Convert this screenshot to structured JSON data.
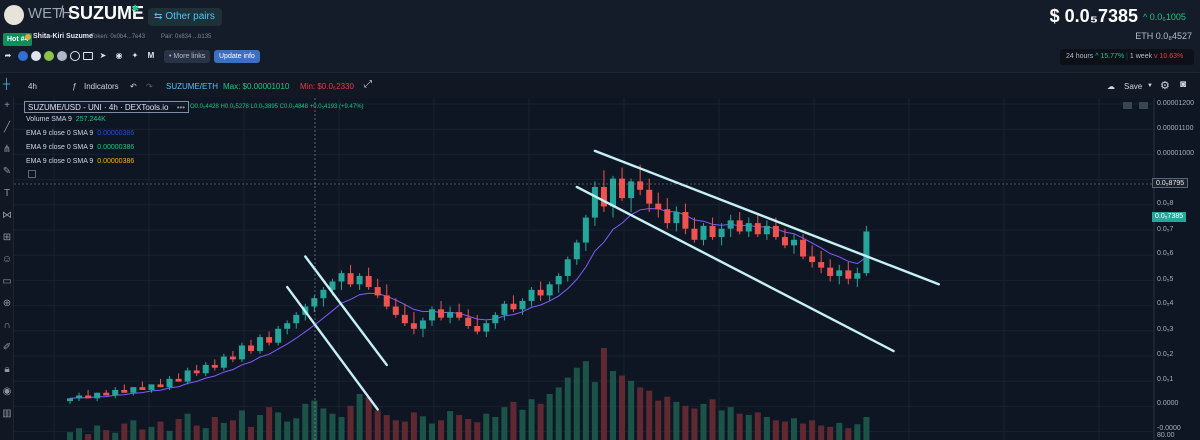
{
  "header": {
    "base_token": "WETH",
    "slash": "/",
    "main_token": "SUZUME",
    "verified_glyph": "✱",
    "other_pairs": "Other pairs",
    "hot_badge": "Hot #4",
    "token_fullname": "Shita-Kiri Suzume",
    "token_address": "Token: 0x0b4...7e43",
    "pair_address": "Pair: 0x834 ...b135",
    "more_links": "• More links",
    "update_info": "Update info",
    "price": "$ 0.0₅7385",
    "price_change": "^ 0.0₆1005",
    "eth_price": "ETH  0.0₈4527",
    "stats": {
      "h24_label": "24 hours",
      "h24_value": "^ 15.77%",
      "w1_label": "1 week",
      "w1_value": "v 10.63%"
    },
    "social_icons": [
      "share-icon",
      "uniswap-icon",
      "etherscan-icon",
      "coingecko-icon",
      "cmc-icon",
      "website-icon",
      "telegram-icon",
      "discord-icon",
      "twitter-icon",
      "medium-icon"
    ]
  },
  "toolbar": {
    "interval": "4h",
    "indicators": "Indicators",
    "pair": "SUZUME/ETH",
    "max": "Max: $0.00001010",
    "min": "Min: $0.0₆2330",
    "save": "Save"
  },
  "legend": {
    "title": "SUZUME/USD - UNI · 4h · DEXTools.io",
    "dots": "•••",
    "ohlc": "O0.0₅4428 H0.0₅5278 L0.0₅3895 C0.0₅4848 +0.0₅4193 (+9.47%)",
    "volume": "Volume SMA 9",
    "volume_value": "257.244K",
    "ema_rows": [
      {
        "label": "EMA 9 close 0 SMA 9",
        "value": "0.00000386",
        "color": "#1f4fd6"
      },
      {
        "label": "EMA 9 close 0 SMA 9",
        "value": "0.00000386",
        "color": "#16c784"
      },
      {
        "label": "EMA 9 close 0 SMA 9",
        "value": "0.00000386",
        "color": "#f7b500"
      }
    ]
  },
  "axis": {
    "labels": [
      "0.00001200",
      "0.00001100",
      "0.00001000",
      "0.0₅8795",
      "0.0₅8",
      "0.0₅7385",
      "0.0₅7",
      "0.0₅6",
      "0.0₅5",
      "0.0₅4",
      "0.0₅3",
      "0.0₅2",
      "0.0₅1",
      "0.0000",
      "-0.0000"
    ],
    "current_tag": "0.0₅7385",
    "current_color": "#26a69a",
    "crosshair_tag": "0.0₅8795",
    "bottom_value": "80.00"
  },
  "chart_data": {
    "type": "candlestick",
    "interval": "4h",
    "ylim": [
      -2e-07,
      1.21e-05
    ],
    "candles": [
      [
        1.2e-06,
        1.3e-06,
        1.1e-06,
        1.3e-06
      ],
      [
        1.3e-06,
        1.5e-06,
        1.2e-06,
        1.4e-06
      ],
      [
        1.4e-06,
        1.6e-06,
        1.3e-06,
        1.3e-06
      ],
      [
        1.3e-06,
        1.5e-06,
        1.2e-06,
        1.5e-06
      ],
      [
        1.5e-06,
        1.6e-06,
        1.4e-06,
        1.4e-06
      ],
      [
        1.4e-06,
        1.7e-06,
        1.3e-06,
        1.6e-06
      ],
      [
        1.6e-06,
        1.8e-06,
        1.5e-06,
        1.5e-06
      ],
      [
        1.5e-06,
        1.7e-06,
        1.4e-06,
        1.7e-06
      ],
      [
        1.7e-06,
        1.9e-06,
        1.6e-06,
        1.6e-06
      ],
      [
        1.6e-06,
        1.8e-06,
        1.5e-06,
        1.8e-06
      ],
      [
        1.8e-06,
        2e-06,
        1.7e-06,
        1.7e-06
      ],
      [
        1.7e-06,
        2.1e-06,
        1.6e-06,
        2e-06
      ],
      [
        2e-06,
        2.2e-06,
        1.9e-06,
        1.9e-06
      ],
      [
        1.9e-06,
        2.4e-06,
        1.8e-06,
        2.3e-06
      ],
      [
        2.3e-06,
        2.5e-06,
        2.1e-06,
        2.2e-06
      ],
      [
        2.2e-06,
        2.6e-06,
        2.1e-06,
        2.5e-06
      ],
      [
        2.5e-06,
        2.7e-06,
        2.3e-06,
        2.4e-06
      ],
      [
        2.4e-06,
        2.9e-06,
        2.3e-06,
        2.8e-06
      ],
      [
        2.8e-06,
        3e-06,
        2.6e-06,
        2.7e-06
      ],
      [
        2.7e-06,
        3.3e-06,
        2.6e-06,
        3.2e-06
      ],
      [
        3.2e-06,
        3.4e-06,
        2.9e-06,
        3e-06
      ],
      [
        3e-06,
        3.6e-06,
        2.9e-06,
        3.5e-06
      ],
      [
        3.5e-06,
        3.7e-06,
        3.2e-06,
        3.3e-06
      ],
      [
        3.3e-06,
        3.9e-06,
        3.2e-06,
        3.8e-06
      ],
      [
        3.8e-06,
        4.1e-06,
        3.6e-06,
        4e-06
      ],
      [
        4e-06,
        4.4e-06,
        3.8e-06,
        4.3e-06
      ],
      [
        4.3e-06,
        4.7e-06,
        4.1e-06,
        4.6e-06
      ],
      [
        4.6e-06,
        5e-06,
        4.4e-06,
        4.9e-06
      ],
      [
        4.9e-06,
        5.3e-06,
        4.6e-06,
        5.2e-06
      ],
      [
        5.2e-06,
        5.6e-06,
        5e-06,
        5.5e-06
      ],
      [
        5.5e-06,
        5.9e-06,
        5.2e-06,
        5.8e-06
      ],
      [
        5.8e-06,
        6.1e-06,
        5.3e-06,
        5.4e-06
      ],
      [
        5.4e-06,
        5.8e-06,
        5.2e-06,
        5.7e-06
      ],
      [
        5.7e-06,
        6e-06,
        5.2e-06,
        5.3e-06
      ],
      [
        5.3e-06,
        5.6e-06,
        4.9e-06,
        5e-06
      ],
      [
        5e-06,
        5.4e-06,
        4.5e-06,
        4.6e-06
      ],
      [
        4.6e-06,
        4.9e-06,
        4.2e-06,
        4.3e-06
      ],
      [
        4.3e-06,
        4.7e-06,
        3.9e-06,
        4e-06
      ],
      [
        4e-06,
        4.4e-06,
        3.6e-06,
        3.8e-06
      ],
      [
        3.8e-06,
        4.2e-06,
        3.5e-06,
        4.1e-06
      ],
      [
        4.1e-06,
        4.6e-06,
        3.9e-06,
        4.5e-06
      ],
      [
        4.5e-06,
        4.8e-06,
        4.1e-06,
        4.2e-06
      ],
      [
        4.2e-06,
        4.6e-06,
        4e-06,
        4.4e-06
      ],
      [
        4.4e-06,
        4.7e-06,
        4.1e-06,
        4.2e-06
      ],
      [
        4.2e-06,
        4.5e-06,
        3.8e-06,
        3.9e-06
      ],
      [
        3.9e-06,
        4.3e-06,
        3.6e-06,
        3.7e-06
      ],
      [
        3.7e-06,
        4.1e-06,
        3.5e-06,
        4e-06
      ],
      [
        4e-06,
        4.4e-06,
        3.8e-06,
        4.3e-06
      ],
      [
        4.3e-06,
        4.8e-06,
        4.1e-06,
        4.7e-06
      ],
      [
        4.7e-06,
        5e-06,
        4.4e-06,
        4.5e-06
      ],
      [
        4.5e-06,
        4.9e-06,
        4.3e-06,
        4.8e-06
      ],
      [
        4.8e-06,
        5.3e-06,
        4.6e-06,
        5.2e-06
      ],
      [
        5.2e-06,
        5.5e-06,
        4.8e-06,
        5e-06
      ],
      [
        5e-06,
        5.5e-06,
        4.8e-06,
        5.4e-06
      ],
      [
        5.4e-06,
        5.8e-06,
        5.1e-06,
        5.7e-06
      ],
      [
        5.7e-06,
        6.4e-06,
        5.5e-06,
        6.3e-06
      ],
      [
        6.3e-06,
        7e-06,
        6.1e-06,
        6.9e-06
      ],
      [
        6.9e-06,
        7.9e-06,
        6.6e-06,
        7.8e-06
      ],
      [
        7.8e-06,
        9.1e-06,
        7.5e-06,
        8.9e-06
      ],
      [
        8.9e-06,
        9.5e-06,
        8e-06,
        8.2e-06
      ],
      [
        8.2e-06,
        9.3e-06,
        7.8e-06,
        9.2e-06
      ],
      [
        9.2e-06,
        9.6e-06,
        8.4e-06,
        8.5e-06
      ],
      [
        8.5e-06,
        9.2e-06,
        8e-06,
        9.1e-06
      ],
      [
        9.1e-06,
        9.7e-06,
        8.6e-06,
        8.8e-06
      ],
      [
        8.8e-06,
        9.2e-06,
        8e-06,
        8.3e-06
      ],
      [
        8.3e-06,
        8.7e-06,
        7.8e-06,
        8.1e-06
      ],
      [
        8.1e-06,
        8.5e-06,
        7.4e-06,
        7.6e-06
      ],
      [
        7.6e-06,
        8.2e-06,
        7.3e-06,
        8e-06
      ],
      [
        8e-06,
        8.3e-06,
        7.2e-06,
        7.4e-06
      ],
      [
        7.4e-06,
        7.8e-06,
        6.9e-06,
        7e-06
      ],
      [
        7e-06,
        7.6e-06,
        6.8e-06,
        7.5e-06
      ],
      [
        7.5e-06,
        7.8e-06,
        7e-06,
        7.1e-06
      ],
      [
        7.1e-06,
        7.6e-06,
        6.8e-06,
        7.4e-06
      ],
      [
        7.4e-06,
        7.9e-06,
        7.1e-06,
        7.7e-06
      ],
      [
        7.7e-06,
        8e-06,
        7.2e-06,
        7.3e-06
      ],
      [
        7.3e-06,
        7.8e-06,
        7.1e-06,
        7.6e-06
      ],
      [
        7.6e-06,
        7.9e-06,
        7.1e-06,
        7.2e-06
      ],
      [
        7.2e-06,
        7.7e-06,
        7e-06,
        7.5e-06
      ],
      [
        7.5e-06,
        7.8e-06,
        7e-06,
        7.1e-06
      ],
      [
        7.1e-06,
        7.4e-06,
        6.7e-06,
        6.8e-06
      ],
      [
        6.8e-06,
        7.2e-06,
        6.5e-06,
        7e-06
      ],
      [
        7e-06,
        7.2e-06,
        6.3e-06,
        6.4e-06
      ],
      [
        6.4e-06,
        6.8e-06,
        6e-06,
        6.2e-06
      ],
      [
        6.2e-06,
        6.6e-06,
        5.8e-06,
        6e-06
      ],
      [
        6e-06,
        6.3e-06,
        5.5e-06,
        5.7e-06
      ],
      [
        5.7e-06,
        6.1e-06,
        5.4e-06,
        5.9e-06
      ],
      [
        5.9e-06,
        6.2e-06,
        5.4e-06,
        5.6e-06
      ],
      [
        5.6e-06,
        6e-06,
        5.3e-06,
        5.8e-06
      ],
      [
        5.8e-06,
        7.5e-06,
        5.7e-06,
        7.3e-06
      ]
    ],
    "volumes": [
      12,
      18,
      9,
      22,
      15,
      11,
      25,
      30,
      16,
      20,
      28,
      14,
      32,
      40,
      22,
      18,
      35,
      26,
      30,
      45,
      20,
      38,
      50,
      42,
      28,
      33,
      55,
      60,
      48,
      40,
      35,
      52,
      70,
      65,
      45,
      38,
      30,
      28,
      42,
      36,
      25,
      30,
      44,
      38,
      32,
      27,
      40,
      35,
      50,
      58,
      46,
      62,
      55,
      70,
      80,
      95,
      110,
      120,
      88,
      140,
      105,
      98,
      90,
      80,
      75,
      60,
      66,
      58,
      52,
      48,
      55,
      62,
      45,
      50,
      40,
      38,
      42,
      35,
      30,
      28,
      33,
      25,
      30,
      22,
      20,
      26,
      18,
      24,
      35
    ],
    "channels": [
      {
        "name": "channel-1",
        "top": [
          [
            6.4e-06,
            26
          ],
          [
            2.5e-06,
            35
          ]
        ],
        "bottom": [
          [
            5.3e-06,
            24
          ],
          [
            9e-07,
            34
          ]
        ]
      },
      {
        "name": "channel-2",
        "top": [
          [
            1.02e-05,
            58
          ],
          [
            5.4e-06,
            96
          ]
        ],
        "bottom": [
          [
            8.9e-06,
            56
          ],
          [
            3e-06,
            91
          ]
        ]
      }
    ]
  }
}
